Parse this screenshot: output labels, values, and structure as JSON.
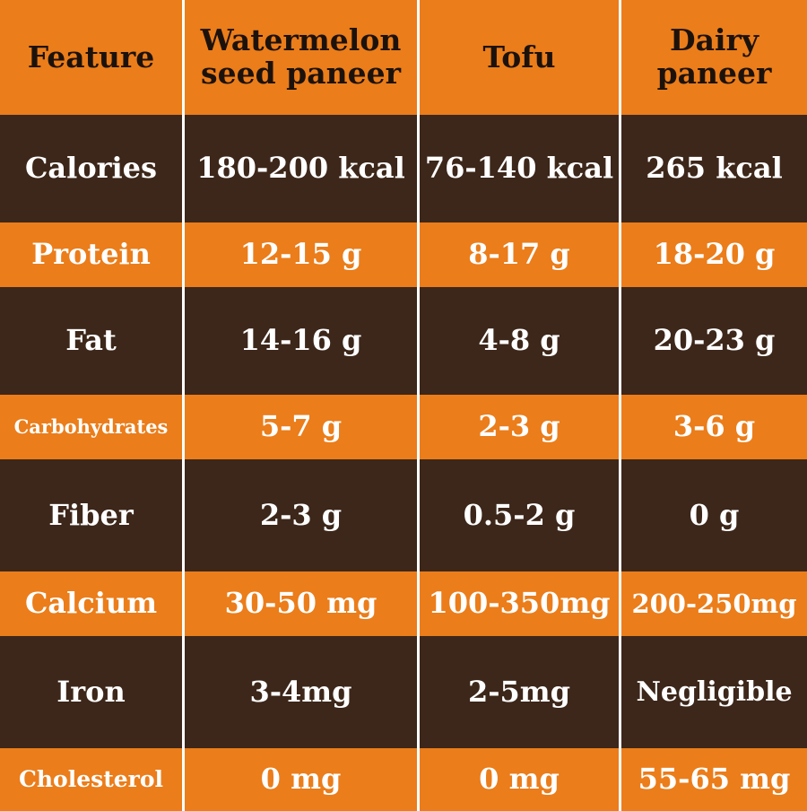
{
  "colors": {
    "orange": "#eb7d1a",
    "brown": "#3d271a",
    "header_text": "#1c120c",
    "body_text": "#ffffff"
  },
  "header": [
    "Feature",
    "Watermelon seed paneer",
    "Tofu",
    "Dairy paneer"
  ],
  "rows": [
    {
      "feature": "Calories",
      "watermelon": "180-200 kcal",
      "tofu": "76-140 kcal",
      "dairy": "265 kcal"
    },
    {
      "feature": "Protein",
      "watermelon": "12-15 g",
      "tofu": "8-17 g",
      "dairy": "18-20 g"
    },
    {
      "feature": "Fat",
      "watermelon": "14-16 g",
      "tofu": "4-8 g",
      "dairy": "20-23 g"
    },
    {
      "feature": "Carbohydrates",
      "watermelon": "5-7 g",
      "tofu": "2-3 g",
      "dairy": "3-6 g"
    },
    {
      "feature": "Fiber",
      "watermelon": "2-3 g",
      "tofu": "0.5-2 g",
      "dairy": "0 g"
    },
    {
      "feature": "Calcium",
      "watermelon": "30-50 mg",
      "tofu": "100-350mg",
      "dairy": "200-250mg"
    },
    {
      "feature": "Iron",
      "watermelon": "3-4mg",
      "tofu": "2-5mg",
      "dairy": "Negligible"
    },
    {
      "feature": "Cholesterol",
      "watermelon": "0 mg",
      "tofu": "0 mg",
      "dairy": "55-65 mg"
    }
  ]
}
